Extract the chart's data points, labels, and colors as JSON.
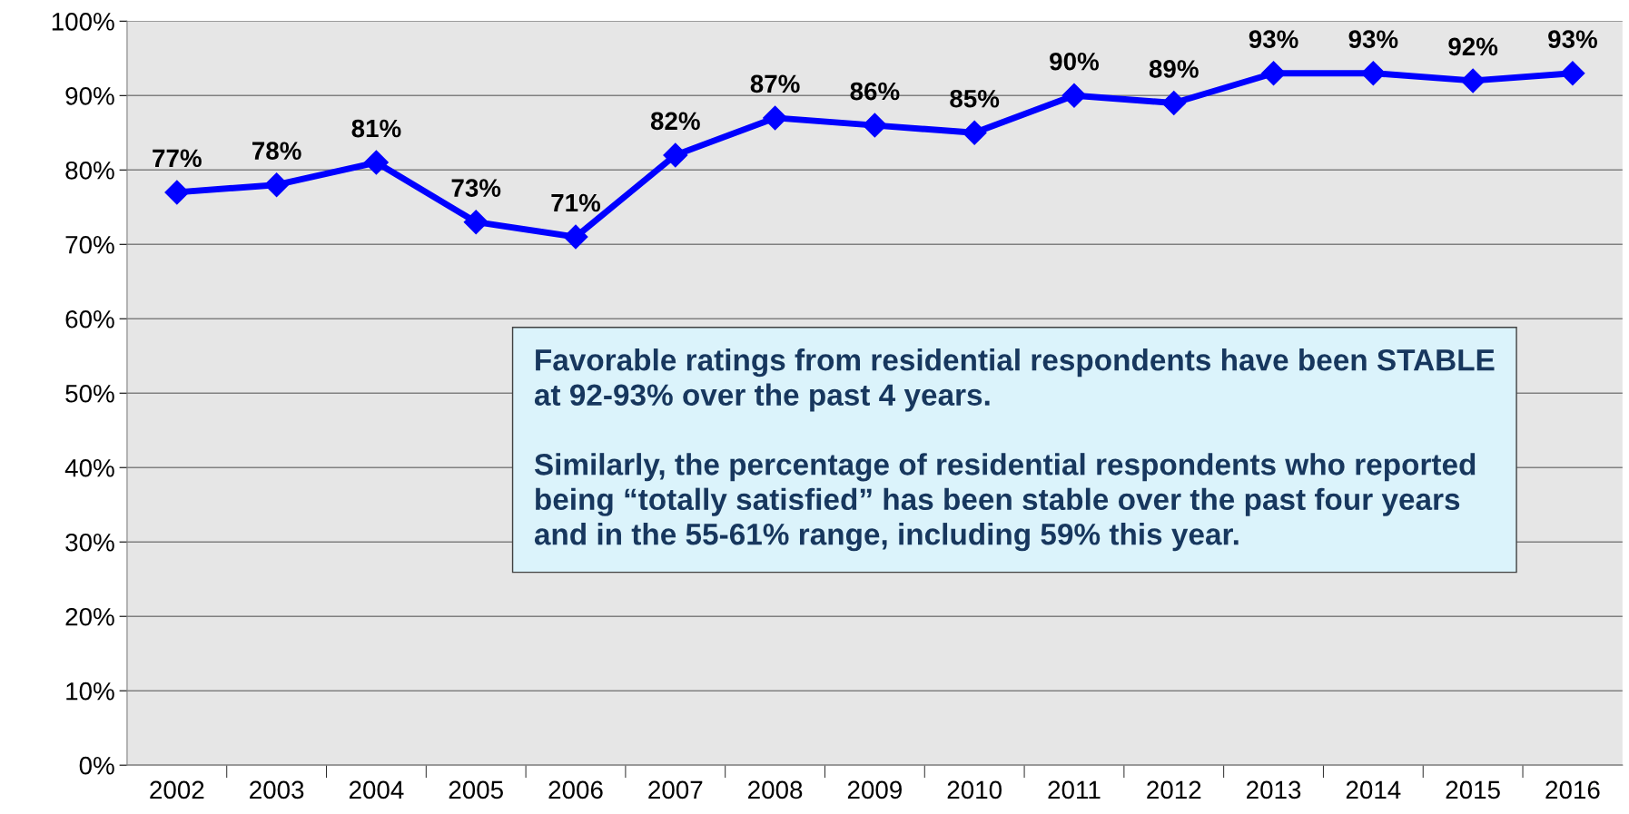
{
  "chart_data": {
    "type": "line",
    "categories": [
      "2002",
      "2003",
      "2004",
      "2005",
      "2006",
      "2007",
      "2008",
      "2009",
      "2010",
      "2011",
      "2012",
      "2013",
      "2014",
      "2015",
      "2016"
    ],
    "series": [
      {
        "color": "#0000ff",
        "values": [
          77,
          78,
          81,
          73,
          71,
          82,
          87,
          86,
          85,
          90,
          89,
          93,
          93,
          92,
          93
        ],
        "value_labels": [
          "77%",
          "78%",
          "81%",
          "73%",
          "71%",
          "82%",
          "87%",
          "86%",
          "85%",
          "90%",
          "89%",
          "93%",
          "93%",
          "92%",
          "93%"
        ]
      }
    ],
    "ylim": [
      0,
      100
    ],
    "yticks": [
      {
        "value": 0,
        "label": "0%"
      },
      {
        "value": 10,
        "label": "10%"
      },
      {
        "value": 20,
        "label": "20%"
      },
      {
        "value": 30,
        "label": "30%"
      },
      {
        "value": 40,
        "label": "40%"
      },
      {
        "value": 50,
        "label": "50%"
      },
      {
        "value": 60,
        "label": "60%"
      },
      {
        "value": 70,
        "label": "70%"
      },
      {
        "value": 80,
        "label": "80%"
      },
      {
        "value": 90,
        "label": "90%"
      },
      {
        "value": 100,
        "label": "100%"
      }
    ],
    "grid": "y",
    "marker": "diamond",
    "line_style": "solid",
    "legend": false,
    "annotations": [
      "Favorable ratings from residential respondents have been STABLE at 92-93% over the past 4 years.",
      "Similarly, the percentage of residential respondents who reported being “totally satisfied” has been stable over the past four years and in the 55-61% range, including 59% this year."
    ]
  }
}
